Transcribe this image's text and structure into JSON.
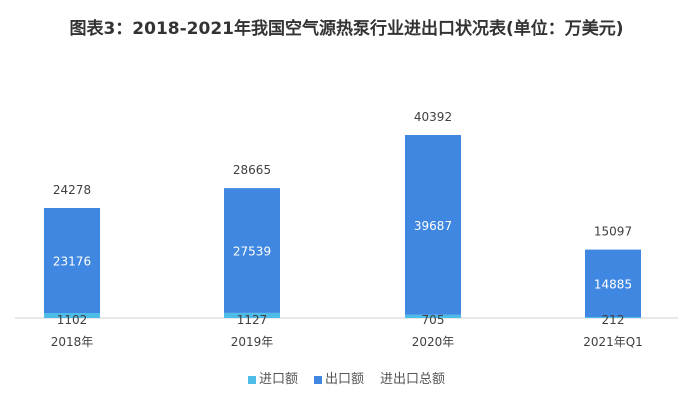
{
  "chart_data": {
    "type": "bar",
    "stacked": true,
    "title": "图表3：2018-2021年我国空气源热泵行业进出口状况表(单位：万美元)",
    "categories": [
      "2018年",
      "2019年",
      "2020年",
      "2021年Q1"
    ],
    "series": [
      {
        "name": "进口额",
        "values": [
          1102,
          1127,
          705,
          212
        ],
        "color": "#4dbde8"
      },
      {
        "name": "出口额",
        "values": [
          23176,
          27539,
          39687,
          14885
        ],
        "color": "#3f87e0"
      },
      {
        "name": "进出口总额",
        "values": [
          24278,
          28665,
          40392,
          15097
        ],
        "color": "none"
      }
    ],
    "xlabel": "",
    "ylabel": "",
    "grid": false,
    "legend": "bottom"
  }
}
